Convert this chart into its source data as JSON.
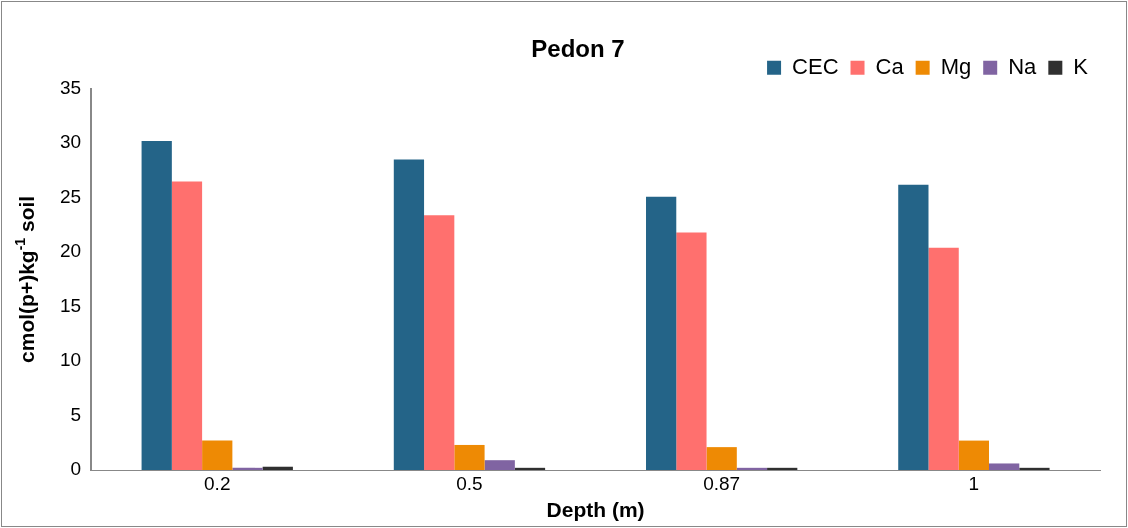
{
  "chart_data": {
    "type": "bar",
    "title": "Pedon 7",
    "xlabel": "Depth (m)",
    "ylabel": "cmol(p+)kg$^{-1}$ soil",
    "categories": [
      "0.2",
      "0.5",
      "0.87",
      "1"
    ],
    "series": [
      {
        "name": "CEC",
        "color": "#246488",
        "values": [
          30.2,
          28.5,
          25.1,
          26.2
        ]
      },
      {
        "name": "Ca",
        "color": "#ff706e",
        "values": [
          26.5,
          23.4,
          21.8,
          20.4
        ]
      },
      {
        "name": "Mg",
        "color": "#ee8a04",
        "values": [
          2.7,
          2.3,
          2.1,
          2.7
        ]
      },
      {
        "name": "Na",
        "color": "#8064a2",
        "values": [
          0.2,
          0.9,
          0.2,
          0.6
        ]
      },
      {
        "name": "K",
        "color": "#303030",
        "values": [
          0.3,
          0.2,
          0.2,
          0.2
        ]
      }
    ],
    "ylim": [
      0,
      35
    ],
    "yticks": [
      0,
      5,
      10,
      15,
      20,
      25,
      30,
      35
    ],
    "grid": false,
    "legend": "top right"
  }
}
